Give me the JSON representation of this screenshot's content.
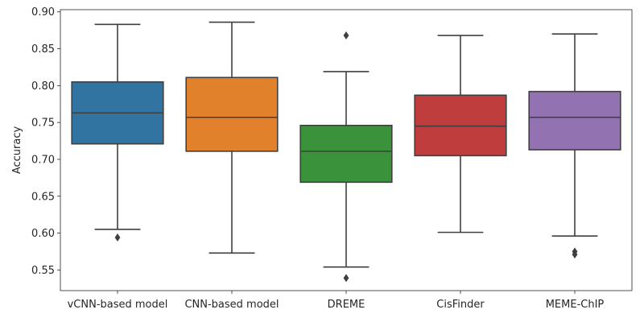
{
  "chart_data": {
    "type": "box",
    "title": "",
    "xlabel": "",
    "ylabel": "Accuracy",
    "ylim": [
      0.522,
      0.903
    ],
    "yticks": [
      "0.55",
      "0.60",
      "0.65",
      "0.70",
      "0.75",
      "0.80",
      "0.85",
      "0.90"
    ],
    "grid": false,
    "categories": [
      "vCNN-based model",
      "CNN-based model",
      "DREME",
      "CisFinder",
      "MEME-ChIP"
    ],
    "series": [
      {
        "category": "vCNN-based model",
        "whisker_low": 0.605,
        "q1": 0.721,
        "median": 0.763,
        "q3": 0.805,
        "whisker_high": 0.883,
        "outliers": [
          0.594
        ],
        "color": "#3274a1"
      },
      {
        "category": "CNN-based model",
        "whisker_low": 0.573,
        "q1": 0.711,
        "median": 0.757,
        "q3": 0.811,
        "whisker_high": 0.886,
        "outliers": [],
        "color": "#e1812c"
      },
      {
        "category": "DREME",
        "whisker_low": 0.554,
        "q1": 0.669,
        "median": 0.711,
        "q3": 0.746,
        "whisker_high": 0.819,
        "outliers": [
          0.868,
          0.539
        ],
        "color": "#3a923a"
      },
      {
        "category": "CisFinder",
        "whisker_low": 0.601,
        "q1": 0.705,
        "median": 0.745,
        "q3": 0.787,
        "whisker_high": 0.868,
        "outliers": [],
        "color": "#c03d3e"
      },
      {
        "category": "MEME-ChIP",
        "whisker_low": 0.596,
        "q1": 0.713,
        "median": 0.757,
        "q3": 0.792,
        "whisker_high": 0.87,
        "outliers": [
          0.575,
          0.571
        ],
        "color": "#9372b2"
      }
    ]
  }
}
